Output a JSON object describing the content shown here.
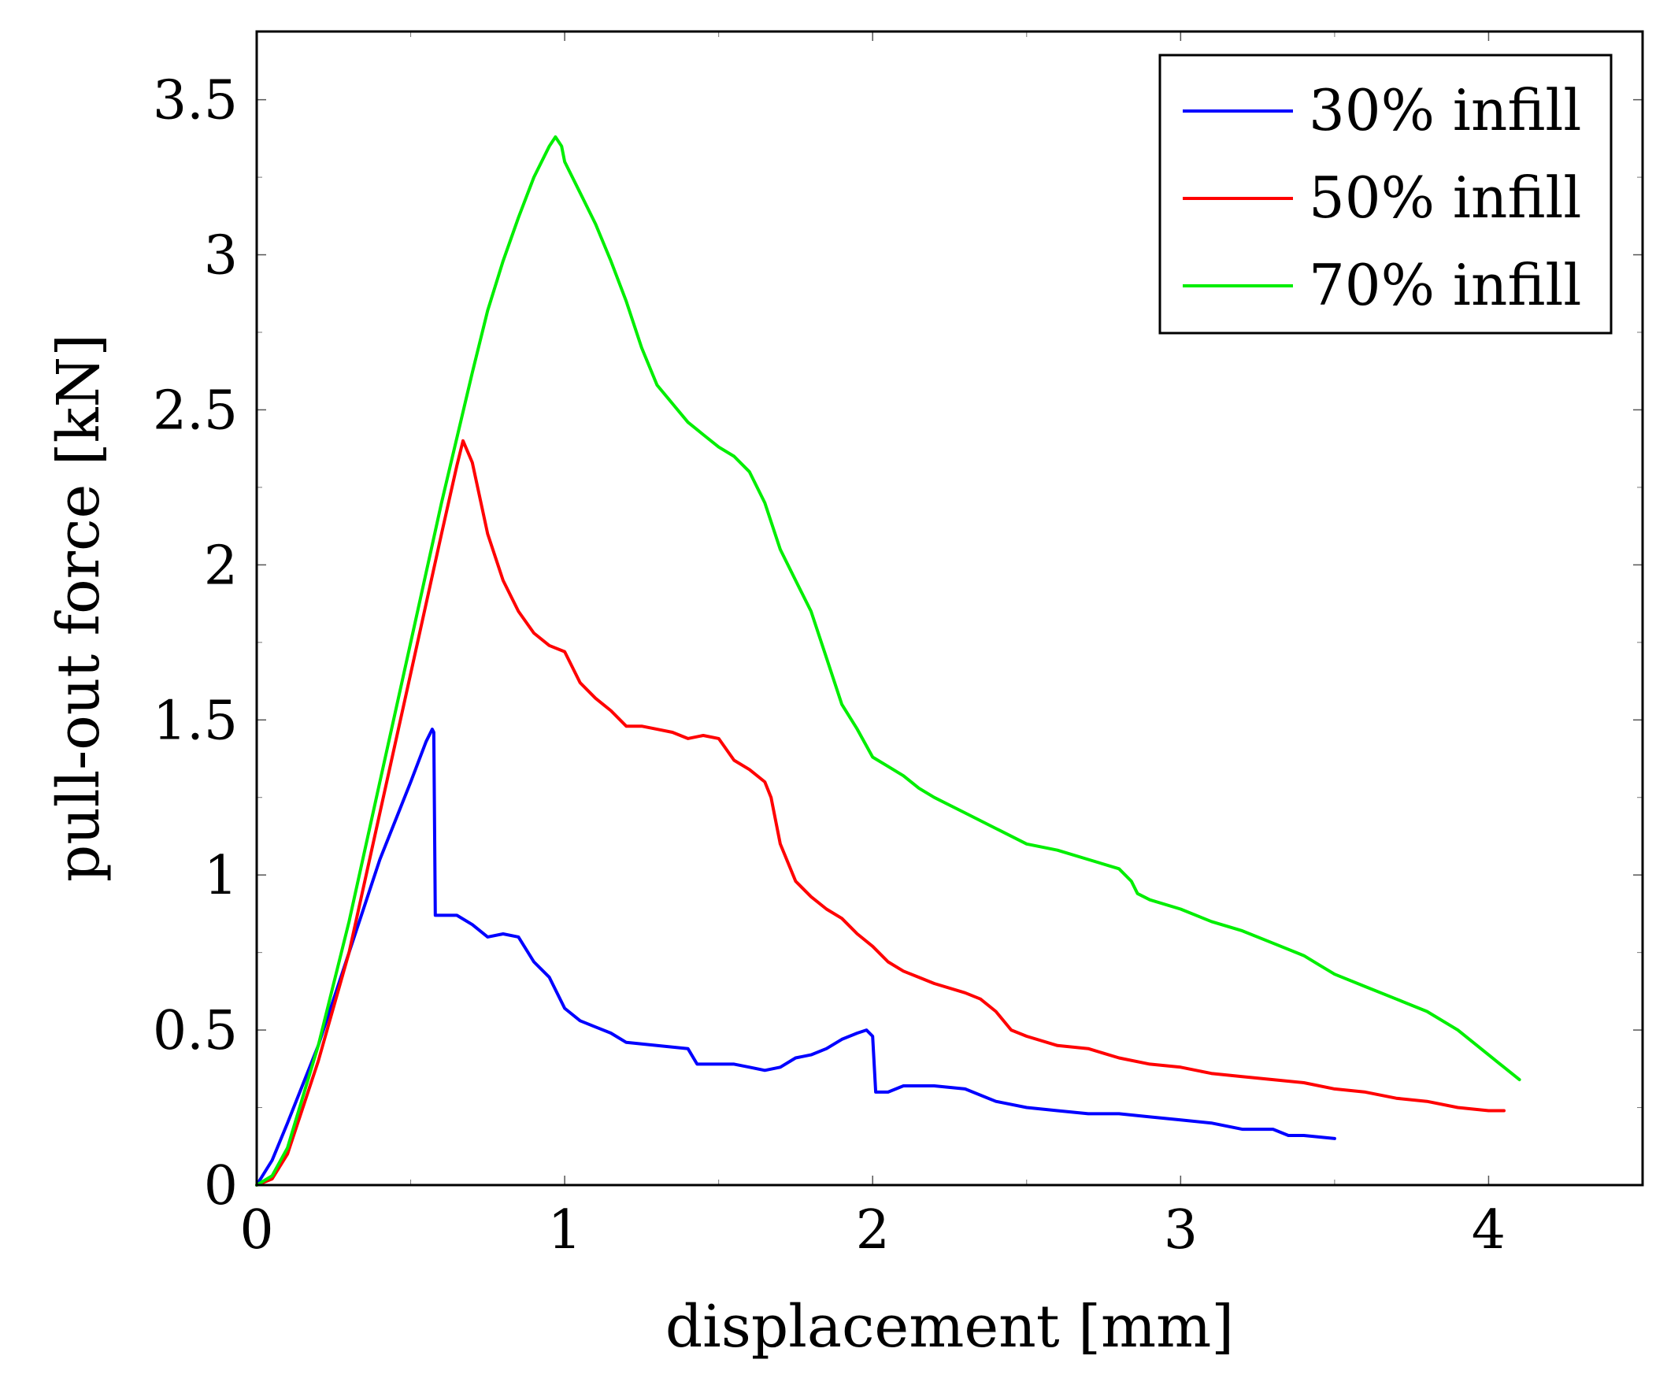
{
  "chart_data": {
    "type": "line",
    "title": "",
    "xlabel": "displacement [mm]",
    "ylabel": "pull-out force [kN]",
    "xlim": [
      0,
      4.5
    ],
    "ylim": [
      0,
      3.72
    ],
    "xticks": [
      0,
      1,
      2,
      3,
      4
    ],
    "xtick_labels": [
      "0",
      "1",
      "2",
      "3",
      "4"
    ],
    "yticks": [
      0,
      0.5,
      1,
      1.5,
      2,
      2.5,
      3,
      3.5
    ],
    "ytick_labels": [
      "0",
      "0.5",
      "1",
      "1.5",
      "2",
      "2.5",
      "3",
      "3.5"
    ],
    "grid": false,
    "legend_position": "top-right",
    "series": [
      {
        "name": "30% infill",
        "color": "#0000ff",
        "points": [
          [
            0,
            0
          ],
          [
            0.05,
            0.08
          ],
          [
            0.1,
            0.2
          ],
          [
            0.2,
            0.45
          ],
          [
            0.3,
            0.75
          ],
          [
            0.4,
            1.05
          ],
          [
            0.5,
            1.3
          ],
          [
            0.55,
            1.43
          ],
          [
            0.57,
            1.47
          ],
          [
            0.575,
            1.46
          ],
          [
            0.58,
            0.87
          ],
          [
            0.6,
            0.87
          ],
          [
            0.65,
            0.87
          ],
          [
            0.7,
            0.84
          ],
          [
            0.75,
            0.8
          ],
          [
            0.8,
            0.81
          ],
          [
            0.85,
            0.8
          ],
          [
            0.9,
            0.72
          ],
          [
            0.95,
            0.67
          ],
          [
            1.0,
            0.57
          ],
          [
            1.05,
            0.53
          ],
          [
            1.1,
            0.51
          ],
          [
            1.15,
            0.49
          ],
          [
            1.2,
            0.46
          ],
          [
            1.3,
            0.45
          ],
          [
            1.4,
            0.44
          ],
          [
            1.43,
            0.39
          ],
          [
            1.5,
            0.39
          ],
          [
            1.55,
            0.39
          ],
          [
            1.6,
            0.38
          ],
          [
            1.65,
            0.37
          ],
          [
            1.7,
            0.38
          ],
          [
            1.75,
            0.41
          ],
          [
            1.8,
            0.42
          ],
          [
            1.85,
            0.44
          ],
          [
            1.9,
            0.47
          ],
          [
            1.95,
            0.49
          ],
          [
            1.98,
            0.5
          ],
          [
            2.0,
            0.48
          ],
          [
            2.01,
            0.3
          ],
          [
            2.05,
            0.3
          ],
          [
            2.1,
            0.32
          ],
          [
            2.2,
            0.32
          ],
          [
            2.3,
            0.31
          ],
          [
            2.4,
            0.27
          ],
          [
            2.5,
            0.25
          ],
          [
            2.6,
            0.24
          ],
          [
            2.7,
            0.23
          ],
          [
            2.8,
            0.23
          ],
          [
            2.9,
            0.22
          ],
          [
            3.0,
            0.21
          ],
          [
            3.1,
            0.2
          ],
          [
            3.2,
            0.18
          ],
          [
            3.3,
            0.18
          ],
          [
            3.35,
            0.16
          ],
          [
            3.4,
            0.16
          ],
          [
            3.5,
            0.15
          ]
        ]
      },
      {
        "name": "50% infill",
        "color": "#ff0000",
        "points": [
          [
            0,
            0
          ],
          [
            0.05,
            0.02
          ],
          [
            0.1,
            0.1
          ],
          [
            0.2,
            0.4
          ],
          [
            0.3,
            0.75
          ],
          [
            0.4,
            1.2
          ],
          [
            0.5,
            1.65
          ],
          [
            0.6,
            2.1
          ],
          [
            0.65,
            2.32
          ],
          [
            0.67,
            2.4
          ],
          [
            0.7,
            2.33
          ],
          [
            0.75,
            2.1
          ],
          [
            0.8,
            1.95
          ],
          [
            0.85,
            1.85
          ],
          [
            0.9,
            1.78
          ],
          [
            0.95,
            1.74
          ],
          [
            1.0,
            1.72
          ],
          [
            1.05,
            1.62
          ],
          [
            1.1,
            1.57
          ],
          [
            1.15,
            1.53
          ],
          [
            1.2,
            1.48
          ],
          [
            1.25,
            1.48
          ],
          [
            1.3,
            1.47
          ],
          [
            1.35,
            1.46
          ],
          [
            1.4,
            1.44
          ],
          [
            1.45,
            1.45
          ],
          [
            1.5,
            1.44
          ],
          [
            1.55,
            1.37
          ],
          [
            1.6,
            1.34
          ],
          [
            1.65,
            1.3
          ],
          [
            1.67,
            1.25
          ],
          [
            1.7,
            1.1
          ],
          [
            1.75,
            0.98
          ],
          [
            1.8,
            0.93
          ],
          [
            1.85,
            0.89
          ],
          [
            1.9,
            0.86
          ],
          [
            1.95,
            0.81
          ],
          [
            2.0,
            0.77
          ],
          [
            2.05,
            0.72
          ],
          [
            2.1,
            0.69
          ],
          [
            2.15,
            0.67
          ],
          [
            2.2,
            0.65
          ],
          [
            2.3,
            0.62
          ],
          [
            2.35,
            0.6
          ],
          [
            2.4,
            0.56
          ],
          [
            2.45,
            0.5
          ],
          [
            2.5,
            0.48
          ],
          [
            2.6,
            0.45
          ],
          [
            2.7,
            0.44
          ],
          [
            2.8,
            0.41
          ],
          [
            2.9,
            0.39
          ],
          [
            3.0,
            0.38
          ],
          [
            3.1,
            0.36
          ],
          [
            3.2,
            0.35
          ],
          [
            3.3,
            0.34
          ],
          [
            3.4,
            0.33
          ],
          [
            3.5,
            0.31
          ],
          [
            3.6,
            0.3
          ],
          [
            3.7,
            0.28
          ],
          [
            3.8,
            0.27
          ],
          [
            3.9,
            0.25
          ],
          [
            4.0,
            0.24
          ],
          [
            4.05,
            0.24
          ]
        ]
      },
      {
        "name": "70% infill",
        "color": "#00ee00",
        "points": [
          [
            0,
            0
          ],
          [
            0.05,
            0.03
          ],
          [
            0.1,
            0.12
          ],
          [
            0.2,
            0.45
          ],
          [
            0.3,
            0.85
          ],
          [
            0.4,
            1.3
          ],
          [
            0.5,
            1.75
          ],
          [
            0.6,
            2.2
          ],
          [
            0.7,
            2.62
          ],
          [
            0.75,
            2.82
          ],
          [
            0.8,
            2.98
          ],
          [
            0.85,
            3.12
          ],
          [
            0.9,
            3.25
          ],
          [
            0.95,
            3.35
          ],
          [
            0.97,
            3.38
          ],
          [
            0.99,
            3.35
          ],
          [
            1.0,
            3.3
          ],
          [
            1.05,
            3.2
          ],
          [
            1.1,
            3.1
          ],
          [
            1.15,
            2.98
          ],
          [
            1.2,
            2.85
          ],
          [
            1.25,
            2.7
          ],
          [
            1.3,
            2.58
          ],
          [
            1.35,
            2.52
          ],
          [
            1.4,
            2.46
          ],
          [
            1.45,
            2.42
          ],
          [
            1.5,
            2.38
          ],
          [
            1.55,
            2.35
          ],
          [
            1.6,
            2.3
          ],
          [
            1.65,
            2.2
          ],
          [
            1.7,
            2.05
          ],
          [
            1.75,
            1.95
          ],
          [
            1.8,
            1.85
          ],
          [
            1.85,
            1.7
          ],
          [
            1.9,
            1.55
          ],
          [
            1.95,
            1.47
          ],
          [
            2.0,
            1.38
          ],
          [
            2.05,
            1.35
          ],
          [
            2.1,
            1.32
          ],
          [
            2.15,
            1.28
          ],
          [
            2.2,
            1.25
          ],
          [
            2.3,
            1.2
          ],
          [
            2.4,
            1.15
          ],
          [
            2.5,
            1.1
          ],
          [
            2.6,
            1.08
          ],
          [
            2.7,
            1.05
          ],
          [
            2.8,
            1.02
          ],
          [
            2.84,
            0.98
          ],
          [
            2.86,
            0.94
          ],
          [
            2.9,
            0.92
          ],
          [
            3.0,
            0.89
          ],
          [
            3.1,
            0.85
          ],
          [
            3.2,
            0.82
          ],
          [
            3.3,
            0.78
          ],
          [
            3.4,
            0.74
          ],
          [
            3.45,
            0.71
          ],
          [
            3.5,
            0.68
          ],
          [
            3.6,
            0.64
          ],
          [
            3.7,
            0.6
          ],
          [
            3.8,
            0.56
          ],
          [
            3.9,
            0.5
          ],
          [
            4.0,
            0.42
          ],
          [
            4.1,
            0.34
          ]
        ]
      }
    ]
  }
}
